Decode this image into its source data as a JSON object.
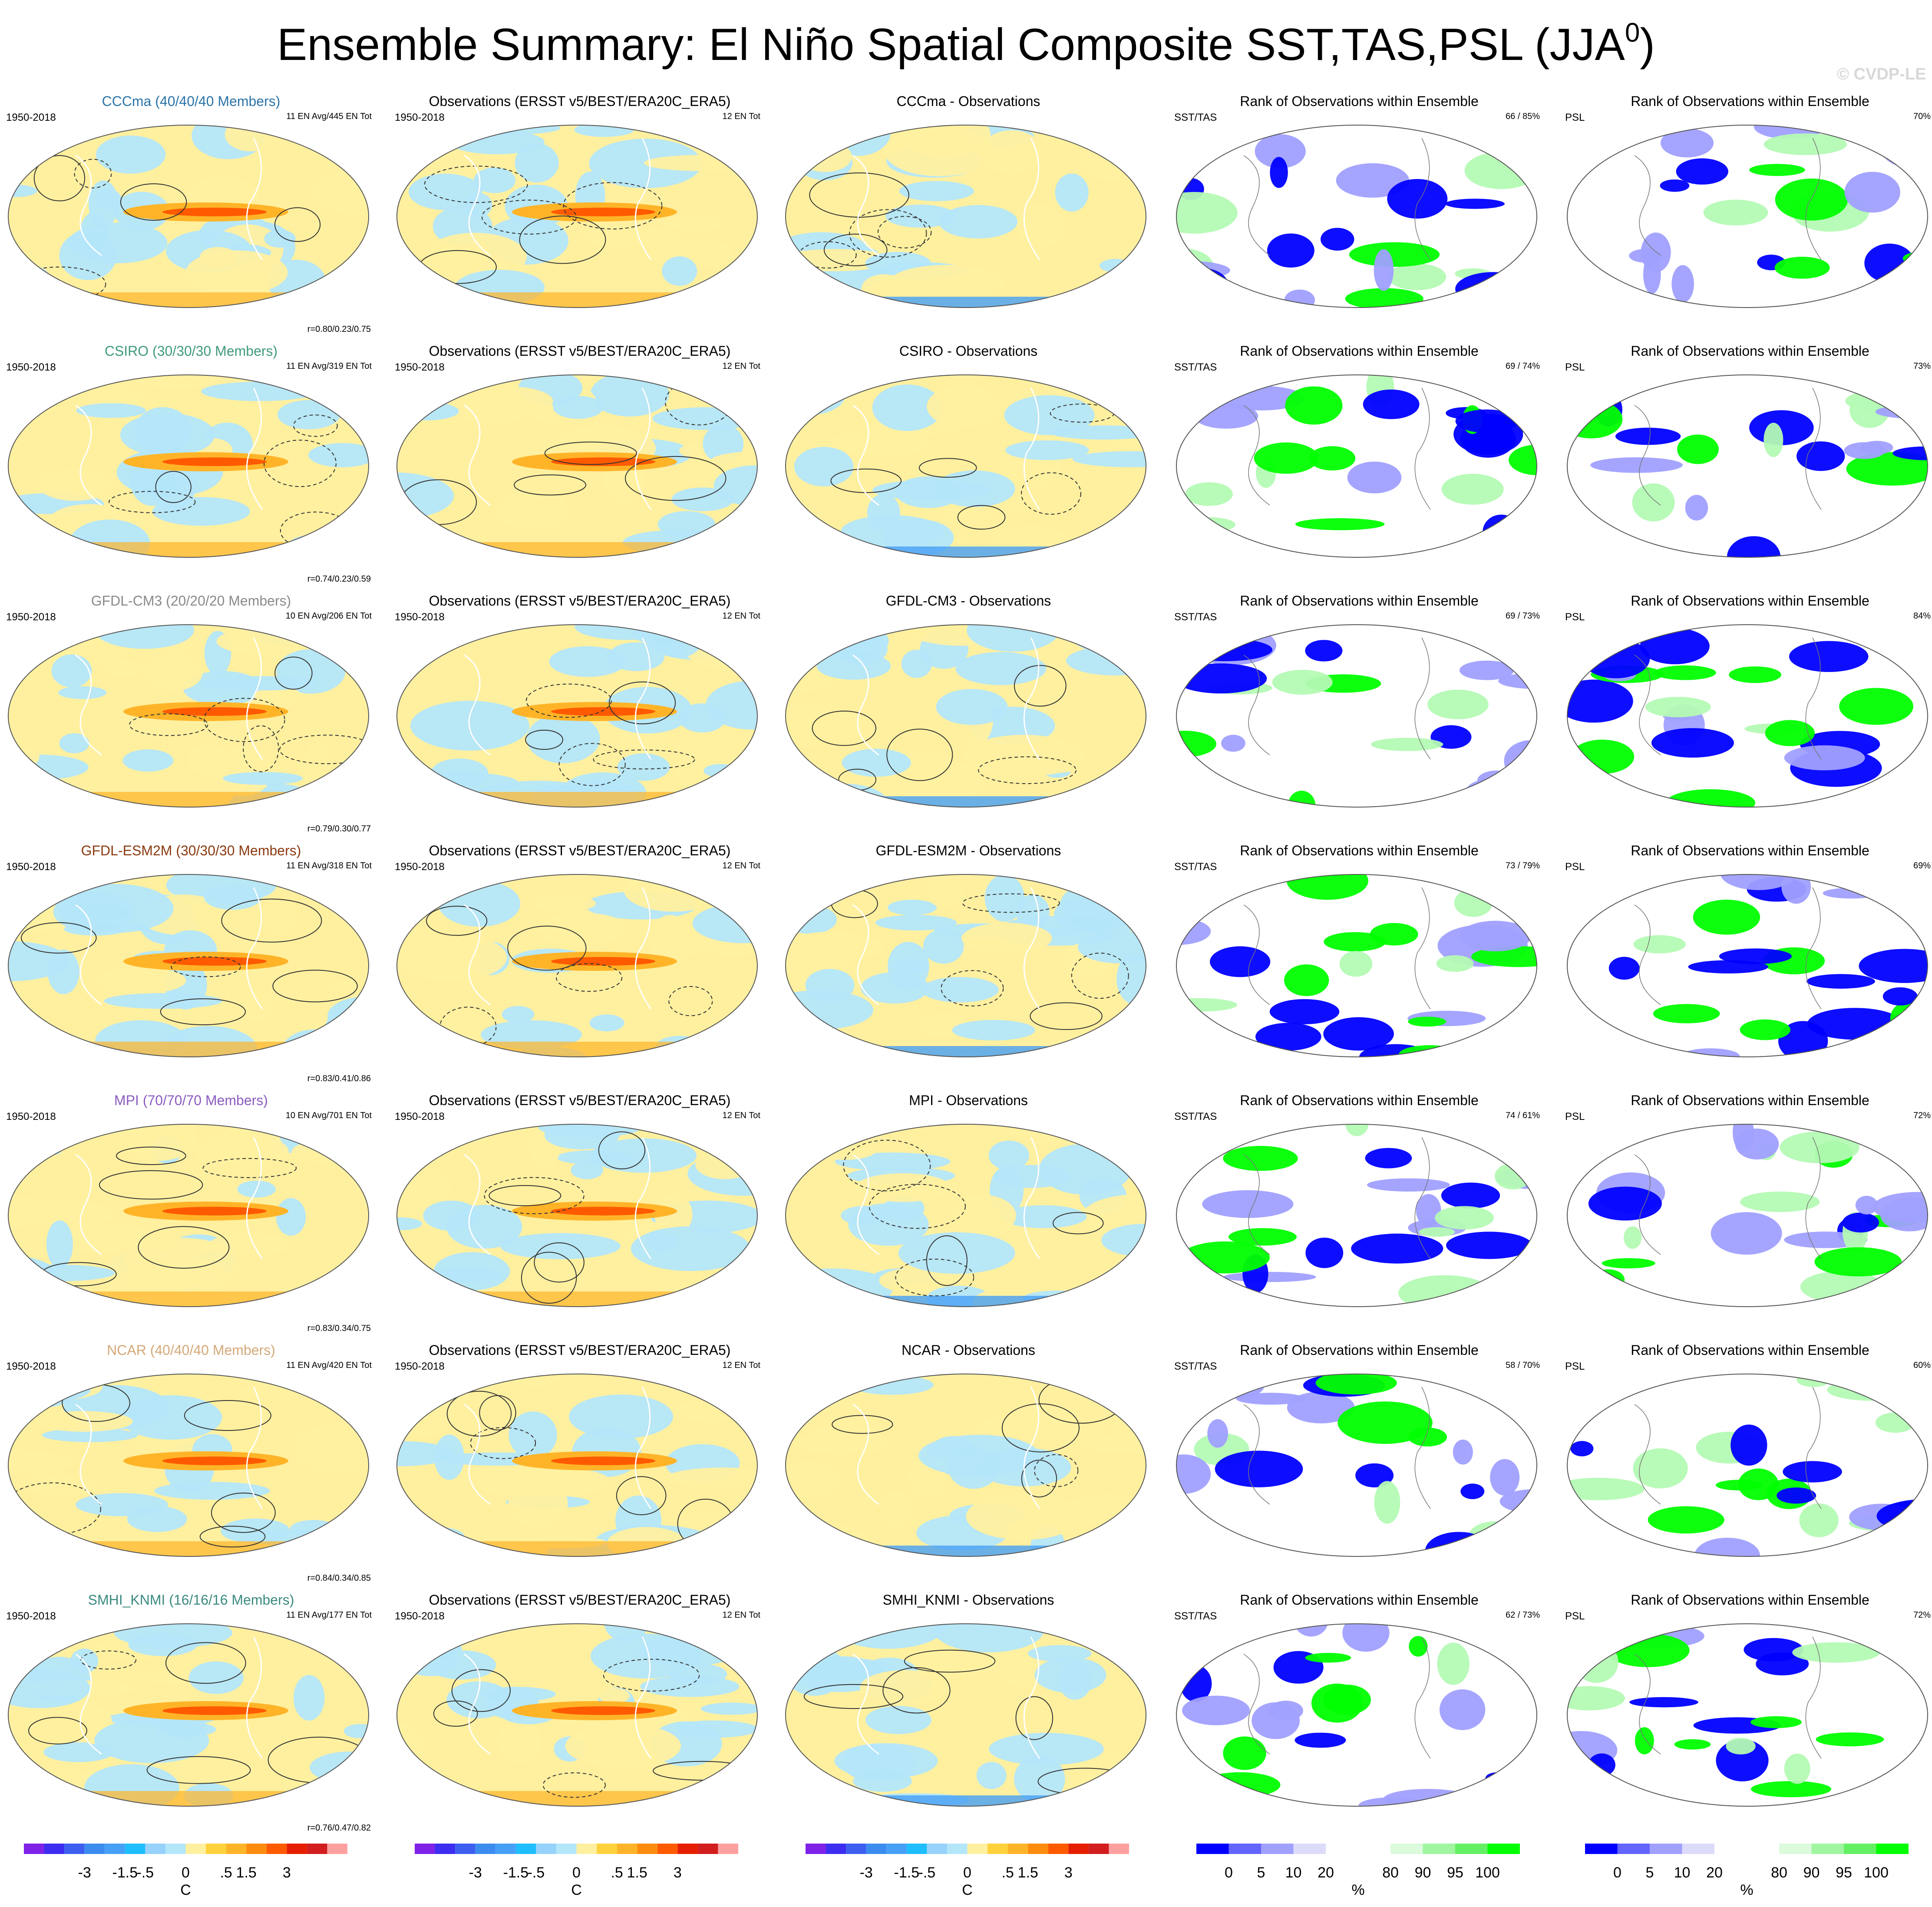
{
  "title": "Ensemble Summary: El Niño Spatial Composite SST,TAS,PSL (JJA",
  "title_sup": "0",
  "title_close": ")",
  "copyright": "© CVDP-LE",
  "period": "1950-2018",
  "obs_title": "Observations (ERSST v5/BEST/ERA20C_ERA5)",
  "obs_count": "12 EN Tot",
  "rank_title": "Rank of Observations within Ensemble",
  "sst_label": "SST/TAS",
  "psl_label": "PSL",
  "rows": [
    {
      "model": "CCCma (40/40/40 Members)",
      "color": "#2a74a8",
      "counts": "11 EN Avg/445 EN Tot",
      "stats": "r=0.80/0.23/0.75",
      "diff": "CCCma - Observations",
      "rank_sst": "66 /  85%",
      "rank_psl": "70%"
    },
    {
      "model": "CSIRO (30/30/30 Members)",
      "color": "#3f9a7a",
      "counts": "11 EN Avg/319 EN Tot",
      "stats": "r=0.74/0.23/0.59",
      "diff": "CSIRO - Observations",
      "rank_sst": "69 /  74%",
      "rank_psl": "73%"
    },
    {
      "model": "GFDL-CM3 (20/20/20 Members)",
      "color": "#8a8a8a",
      "counts": "10 EN Avg/206 EN Tot",
      "stats": "r=0.79/0.30/0.77",
      "diff": "GFDL-CM3 - Observations",
      "rank_sst": "69 /  73%",
      "rank_psl": "84%"
    },
    {
      "model": "GFDL-ESM2M (30/30/30 Members)",
      "color": "#8a3a10",
      "counts": "11 EN Avg/318 EN Tot",
      "stats": "r=0.83/0.41/0.86",
      "diff": "GFDL-ESM2M - Observations",
      "rank_sst": "73 /  79%",
      "rank_psl": "69%"
    },
    {
      "model": "MPI (70/70/70 Members)",
      "color": "#8a5cc0",
      "counts": "10 EN Avg/701 EN Tot",
      "stats": "r=0.83/0.34/0.75",
      "diff": "MPI - Observations",
      "rank_sst": "74 /  61%",
      "rank_psl": "72%"
    },
    {
      "model": "NCAR (40/40/40 Members)",
      "color": "#d4a878",
      "counts": "11 EN Avg/420 EN Tot",
      "stats": "r=0.84/0.34/0.85",
      "diff": "NCAR - Observations",
      "rank_sst": "58 /  70%",
      "rank_psl": "60%"
    },
    {
      "model": "SMHI_KNMI (16/16/16 Members)",
      "color": "#3a8a80",
      "counts": "11 EN Avg/177 EN Tot",
      "stats": "r=0.76/0.47/0.82",
      "diff": "SMHI_KNMI - Observations",
      "rank_sst": "62 /  73%",
      "rank_psl": "72%"
    }
  ],
  "colorbar_temp": {
    "colors": [
      "#7f22e8",
      "#3c2df0",
      "#3c5ff0",
      "#3c8cf0",
      "#46a0f5",
      "#1ebeff",
      "#96d2fa",
      "#b4e6fa",
      "#fff0a0",
      "#ffd23c",
      "#ffb428",
      "#ff8c0f",
      "#ff5a00",
      "#e61e00",
      "#d21e1e",
      "#ffa0a0"
    ],
    "ticks": [
      "-3",
      "-1.5",
      "-.5",
      "0",
      ".5",
      "1.5",
      "3"
    ],
    "unit": "C"
  },
  "colorbar_rank": {
    "colors": [
      "#0000ff",
      "#6464ff",
      "#a0a0ff",
      "#dcdcfa",
      "#ffffff",
      "#ffffff",
      "#dcfadc",
      "#a0f5a0",
      "#64f064",
      "#00ff00"
    ],
    "ticks": [
      "0",
      "5",
      "10",
      "20",
      "80",
      "90",
      "95",
      "100"
    ],
    "unit": "%"
  },
  "palette": {
    "map_warm": "#fff0a0",
    "map_orange": "#ffb428",
    "map_red": "#ff5a00",
    "map_cool": "#b4e6fa",
    "map_blue": "#46a0f5",
    "rank_blue": "#0000ff",
    "rank_lightblue": "#a0a0ff",
    "rank_green": "#00ff00",
    "rank_lightgreen": "#b4fab4"
  }
}
